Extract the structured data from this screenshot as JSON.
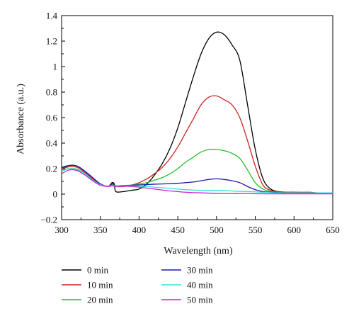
{
  "chart_data": {
    "type": "line",
    "xlabel": "Wavelength (nm)",
    "ylabel": "Absorbance (a.u.)",
    "xlim": [
      300,
      650
    ],
    "ylim": [
      -0.2,
      1.4
    ],
    "x_ticks": [
      "300",
      "350",
      "400",
      "450",
      "500",
      "550",
      "600",
      "650"
    ],
    "y_ticks": [
      "−0.2",
      "0",
      "0.2",
      "0.4",
      "0.6",
      "0.8",
      "1",
      "1.2",
      "1.4"
    ],
    "grid": false,
    "legend_position": "bottom",
    "series": [
      {
        "name": "0 min",
        "color": "#000000",
        "x": [
          300,
          310,
          320,
          330,
          340,
          350,
          360,
          365,
          368,
          370,
          380,
          390,
          400,
          410,
          420,
          430,
          440,
          450,
          460,
          470,
          480,
          490,
          500,
          510,
          520,
          530,
          540,
          550,
          560,
          570,
          580,
          590,
          600,
          610,
          620,
          630,
          640,
          650
        ],
        "y": [
          0.2,
          0.225,
          0.22,
          0.18,
          0.13,
          0.08,
          0.06,
          0.09,
          0.08,
          0.02,
          0.02,
          0.03,
          0.04,
          0.08,
          0.15,
          0.24,
          0.36,
          0.52,
          0.72,
          0.92,
          1.1,
          1.22,
          1.27,
          1.25,
          1.17,
          1.05,
          0.7,
          0.35,
          0.12,
          0.04,
          0.02,
          0.015,
          0.015,
          0.012,
          0.012,
          0.01,
          0.008,
          0.008
        ]
      },
      {
        "name": "10 min",
        "color": "#d02020",
        "x": [
          300,
          310,
          320,
          330,
          340,
          350,
          360,
          365,
          368,
          370,
          380,
          390,
          400,
          410,
          420,
          430,
          440,
          450,
          460,
          470,
          480,
          490,
          500,
          510,
          520,
          530,
          540,
          550,
          560,
          570,
          580,
          590,
          600,
          610,
          620,
          630,
          640,
          650
        ],
        "y": [
          0.2,
          0.215,
          0.21,
          0.17,
          0.12,
          0.08,
          0.06,
          0.085,
          0.075,
          0.06,
          0.06,
          0.07,
          0.09,
          0.12,
          0.16,
          0.21,
          0.28,
          0.37,
          0.48,
          0.59,
          0.7,
          0.76,
          0.77,
          0.74,
          0.7,
          0.6,
          0.42,
          0.22,
          0.07,
          0.03,
          0.02,
          0.015,
          0.015,
          0.015,
          0.015,
          0.01,
          0.01,
          0.01
        ]
      },
      {
        "name": "20 min",
        "color": "#22c222",
        "x": [
          300,
          310,
          320,
          330,
          340,
          350,
          360,
          365,
          368,
          370,
          380,
          390,
          400,
          410,
          420,
          430,
          440,
          450,
          460,
          470,
          480,
          490,
          500,
          510,
          520,
          530,
          540,
          550,
          560,
          570,
          580,
          590,
          600,
          610,
          620,
          630,
          640,
          650
        ],
        "y": [
          0.19,
          0.2,
          0.195,
          0.16,
          0.11,
          0.075,
          0.06,
          0.075,
          0.07,
          0.06,
          0.065,
          0.07,
          0.08,
          0.09,
          0.11,
          0.13,
          0.16,
          0.2,
          0.25,
          0.29,
          0.33,
          0.35,
          0.35,
          0.34,
          0.32,
          0.28,
          0.19,
          0.09,
          0.04,
          0.02,
          0.015,
          0.01,
          0.01,
          0.01,
          0.01,
          0.01,
          0.01,
          0.01
        ]
      },
      {
        "name": "30 min",
        "color": "#1a1aa8",
        "x": [
          300,
          310,
          320,
          330,
          340,
          350,
          360,
          365,
          368,
          370,
          380,
          390,
          400,
          410,
          420,
          430,
          440,
          450,
          460,
          470,
          480,
          490,
          500,
          510,
          520,
          530,
          540,
          550,
          560,
          570,
          580,
          590,
          600,
          610,
          620,
          630,
          640,
          650
        ],
        "y": [
          0.21,
          0.225,
          0.22,
          0.18,
          0.13,
          0.08,
          0.06,
          0.08,
          0.075,
          0.065,
          0.068,
          0.07,
          0.072,
          0.075,
          0.078,
          0.08,
          0.082,
          0.085,
          0.09,
          0.095,
          0.105,
          0.115,
          0.12,
          0.115,
          0.105,
          0.09,
          0.06,
          0.035,
          0.02,
          0.015,
          0.012,
          0.01,
          0.01,
          0.008,
          0.008,
          0.008,
          0.008,
          0.008
        ]
      },
      {
        "name": "40 min",
        "color": "#30e0e0",
        "x": [
          300,
          310,
          320,
          330,
          340,
          350,
          360,
          365,
          368,
          370,
          380,
          390,
          400,
          410,
          420,
          430,
          440,
          450,
          460,
          470,
          480,
          490,
          500,
          510,
          520,
          530,
          540,
          550,
          560,
          570,
          580,
          590,
          600,
          610,
          620,
          630,
          640,
          650
        ],
        "y": [
          0.18,
          0.2,
          0.19,
          0.16,
          0.11,
          0.075,
          0.06,
          0.07,
          0.065,
          0.065,
          0.065,
          0.065,
          0.062,
          0.06,
          0.055,
          0.05,
          0.045,
          0.04,
          0.035,
          0.032,
          0.03,
          0.03,
          0.03,
          0.028,
          0.025,
          0.022,
          0.02,
          0.018,
          0.015,
          0.012,
          0.01,
          0.01,
          0.01,
          0.01,
          0.01,
          0.01,
          0.01,
          0.01
        ]
      },
      {
        "name": "50 min",
        "color": "#d020d0",
        "x": [
          300,
          310,
          320,
          330,
          340,
          350,
          360,
          365,
          368,
          370,
          380,
          390,
          400,
          410,
          420,
          430,
          440,
          450,
          460,
          470,
          480,
          490,
          500,
          510,
          520,
          530,
          540,
          550,
          560,
          570,
          580,
          590,
          600,
          610,
          620,
          630,
          640,
          650
        ],
        "y": [
          0.16,
          0.19,
          0.185,
          0.15,
          0.105,
          0.07,
          0.06,
          0.065,
          0.062,
          0.06,
          0.062,
          0.06,
          0.055,
          0.048,
          0.04,
          0.032,
          0.025,
          0.02,
          0.015,
          0.012,
          0.01,
          0.008,
          0.006,
          0.005,
          0.004,
          0.004,
          0.004,
          0.003,
          0.003,
          0.002,
          0.002,
          0.002,
          0.002,
          0.002,
          0.002,
          0.002,
          0.002,
          0.002
        ]
      }
    ]
  }
}
